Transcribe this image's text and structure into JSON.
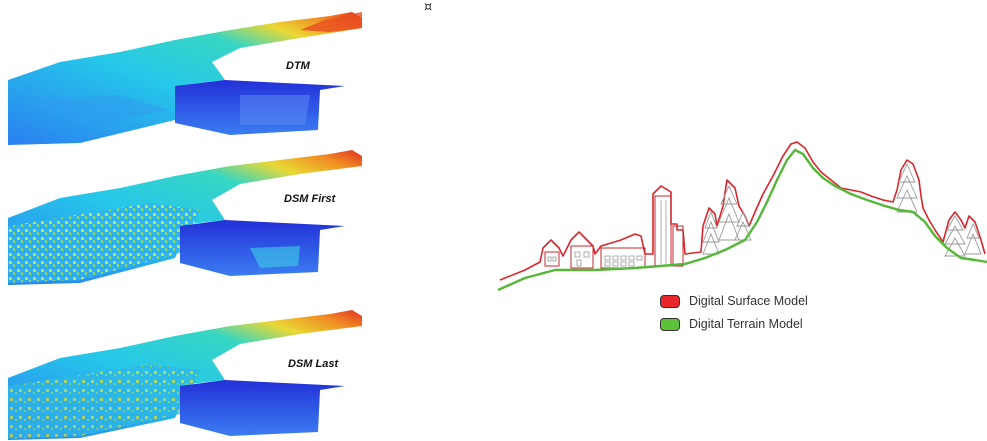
{
  "top_glyph": "¤",
  "panels": [
    {
      "label": "DTM"
    },
    {
      "label": "DSM First"
    },
    {
      "label": "DSM Last"
    }
  ],
  "legend": {
    "surface": {
      "label": "Digital Surface Model",
      "color": "#e8262a"
    },
    "terrain": {
      "label": "Digital Terrain Model",
      "color": "#5cc23a"
    }
  },
  "colors": {
    "surface_line": "#d9262c",
    "terrain_line": "#55b63a",
    "lidar_low": "#1a3fd6",
    "lidar_mid": "#27c6e8",
    "lidar_high": "#e8d23a",
    "lidar_peak": "#e33a1f"
  }
}
